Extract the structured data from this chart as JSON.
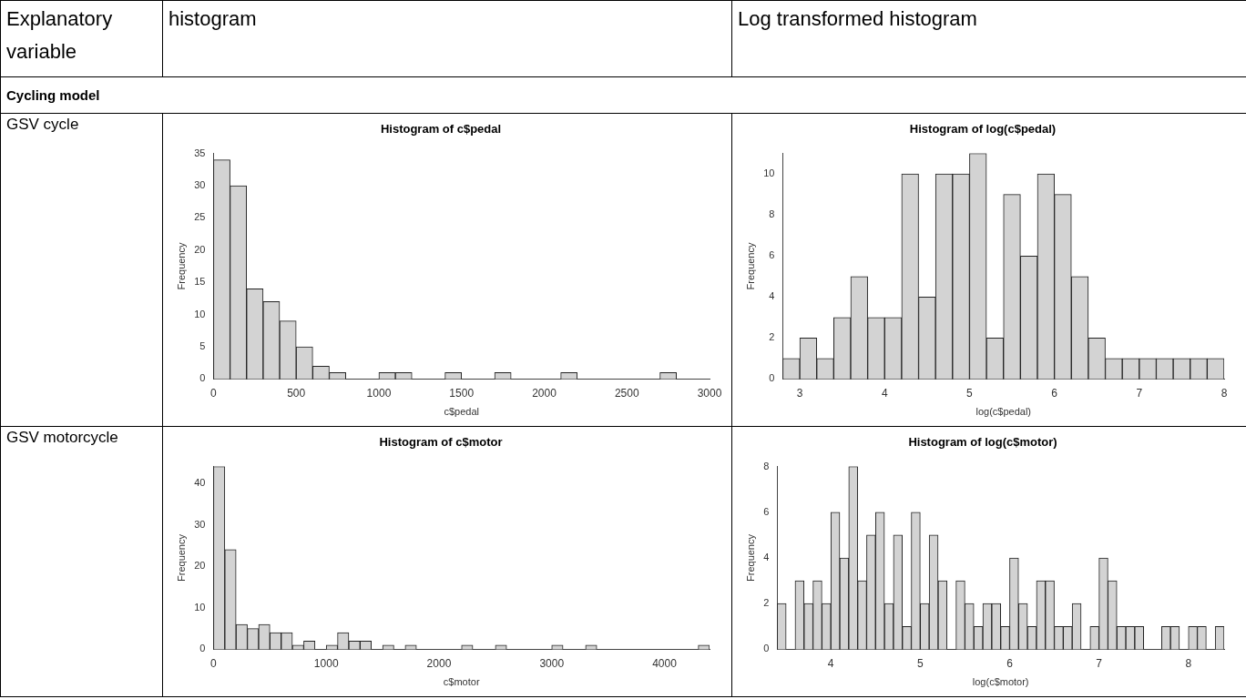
{
  "chart_data": [
    {
      "type": "other",
      "annotations": [
        "Explanatory variable",
        "histogram",
        "Log transformed histogram",
        "Cycling model",
        "GSV cycle",
        "GSV motorcycle"
      ]
    },
    {
      "type": "histogram",
      "title": "Histogram of c$pedal",
      "xlabel": "c$pedal",
      "ylabel": "Frequency",
      "color": "#d3d3d3",
      "bins": [
        0,
        100,
        200,
        300,
        400,
        500,
        600,
        700,
        800,
        900,
        1000,
        1100,
        1200,
        1300,
        1400,
        1500,
        1600,
        1700,
        1800,
        1900,
        2000,
        2100,
        2200,
        2300,
        2400,
        2500,
        2600,
        2700,
        2800
      ],
      "values": [
        34,
        30,
        14,
        12,
        9,
        5,
        2,
        1,
        0,
        0,
        1,
        1,
        0,
        0,
        1,
        0,
        0,
        1,
        0,
        0,
        0,
        1,
        0,
        0,
        0,
        0,
        0,
        1
      ],
      "xlim": [
        0,
        3000
      ],
      "xticks": [
        0,
        500,
        1000,
        1500,
        2000,
        2500,
        3000
      ],
      "ylim": [
        0,
        35
      ],
      "yticks": [
        0,
        5,
        10,
        15,
        20,
        25,
        30,
        35
      ]
    },
    {
      "type": "histogram",
      "title": "Histogram of log(c$pedal)",
      "xlabel": "log(c$pedal)",
      "ylabel": "Frequency",
      "color": "#d3d3d3",
      "bins": [
        2.8,
        3.0,
        3.2,
        3.4,
        3.6,
        3.8,
        4.0,
        4.2,
        4.4,
        4.6,
        4.8,
        5.0,
        5.2,
        5.4,
        5.6,
        5.8,
        6.0,
        6.2,
        6.4,
        6.6,
        6.8,
        7.0,
        7.2,
        7.4,
        7.6,
        7.8,
        8.0
      ],
      "values": [
        1,
        2,
        1,
        3,
        5,
        3,
        3,
        10,
        4,
        10,
        10,
        11,
        2,
        9,
        6,
        10,
        9,
        5,
        2,
        1,
        1,
        1,
        1,
        1,
        1,
        1
      ],
      "xlim": [
        2.8,
        8
      ],
      "xticks": [
        3,
        4,
        5,
        6,
        7,
        8
      ],
      "ylim": [
        0,
        11
      ],
      "yticks": [
        0,
        2,
        4,
        6,
        8,
        10
      ]
    },
    {
      "type": "histogram",
      "title": "Histogram of c$motor",
      "xlabel": "c$motor",
      "ylabel": "Frequency",
      "color": "#d3d3d3",
      "bins": [
        0,
        100,
        200,
        300,
        400,
        500,
        600,
        700,
        800,
        900,
        1000,
        1100,
        1200,
        1300,
        1400,
        1500,
        1600,
        1700,
        1800,
        1900,
        2000,
        2100,
        2200,
        2300,
        2400,
        2500,
        2600,
        2700,
        2800,
        2900,
        3000,
        3100,
        3200,
        3300,
        3400,
        3500,
        3600,
        3700,
        3800,
        3900,
        4000,
        4100,
        4200,
        4300,
        4400
      ],
      "values": [
        44,
        24,
        6,
        5,
        6,
        4,
        4,
        1,
        2,
        0,
        1,
        4,
        2,
        2,
        0,
        1,
        0,
        1,
        0,
        0,
        0,
        0,
        1,
        0,
        0,
        1,
        0,
        0,
        0,
        0,
        1,
        0,
        0,
        1,
        0,
        0,
        0,
        0,
        0,
        0,
        0,
        0,
        0,
        1
      ],
      "xlim": [
        0,
        4400
      ],
      "xticks": [
        0,
        1000,
        2000,
        3000,
        4000
      ],
      "ylim": [
        0,
        44
      ],
      "yticks": [
        0,
        10,
        20,
        30,
        40
      ]
    },
    {
      "type": "histogram",
      "title": "Histogram of log(c$motor)",
      "xlabel": "log(c$motor)",
      "ylabel": "Frequency",
      "color": "#d3d3d3",
      "bins": [
        3.4,
        3.5,
        3.6,
        3.7,
        3.8,
        3.9,
        4.0,
        4.1,
        4.2,
        4.3,
        4.4,
        4.5,
        4.6,
        4.7,
        4.8,
        4.9,
        5.0,
        5.1,
        5.2,
        5.3,
        5.4,
        5.5,
        5.6,
        5.7,
        5.8,
        5.9,
        6.0,
        6.1,
        6.2,
        6.3,
        6.4,
        6.5,
        6.6,
        6.7,
        6.8,
        6.9,
        7.0,
        7.1,
        7.2,
        7.3,
        7.4,
        7.5,
        7.6,
        7.7,
        7.8,
        7.9,
        8.0,
        8.1,
        8.2,
        8.3,
        8.4
      ],
      "values": [
        2,
        0,
        3,
        2,
        3,
        2,
        6,
        4,
        8,
        3,
        5,
        6,
        2,
        5,
        1,
        6,
        2,
        5,
        3,
        0,
        3,
        2,
        1,
        2,
        2,
        1,
        4,
        2,
        1,
        3,
        3,
        1,
        1,
        2,
        0,
        1,
        4,
        3,
        1,
        1,
        1,
        0,
        0,
        1,
        1,
        0,
        1,
        1,
        0,
        1
      ],
      "xlim": [
        3.4,
        8.4
      ],
      "xticks": [
        4,
        5,
        6,
        7,
        8
      ],
      "ylim": [
        0,
        8
      ],
      "yticks": [
        0,
        2,
        4,
        6,
        8
      ]
    }
  ]
}
